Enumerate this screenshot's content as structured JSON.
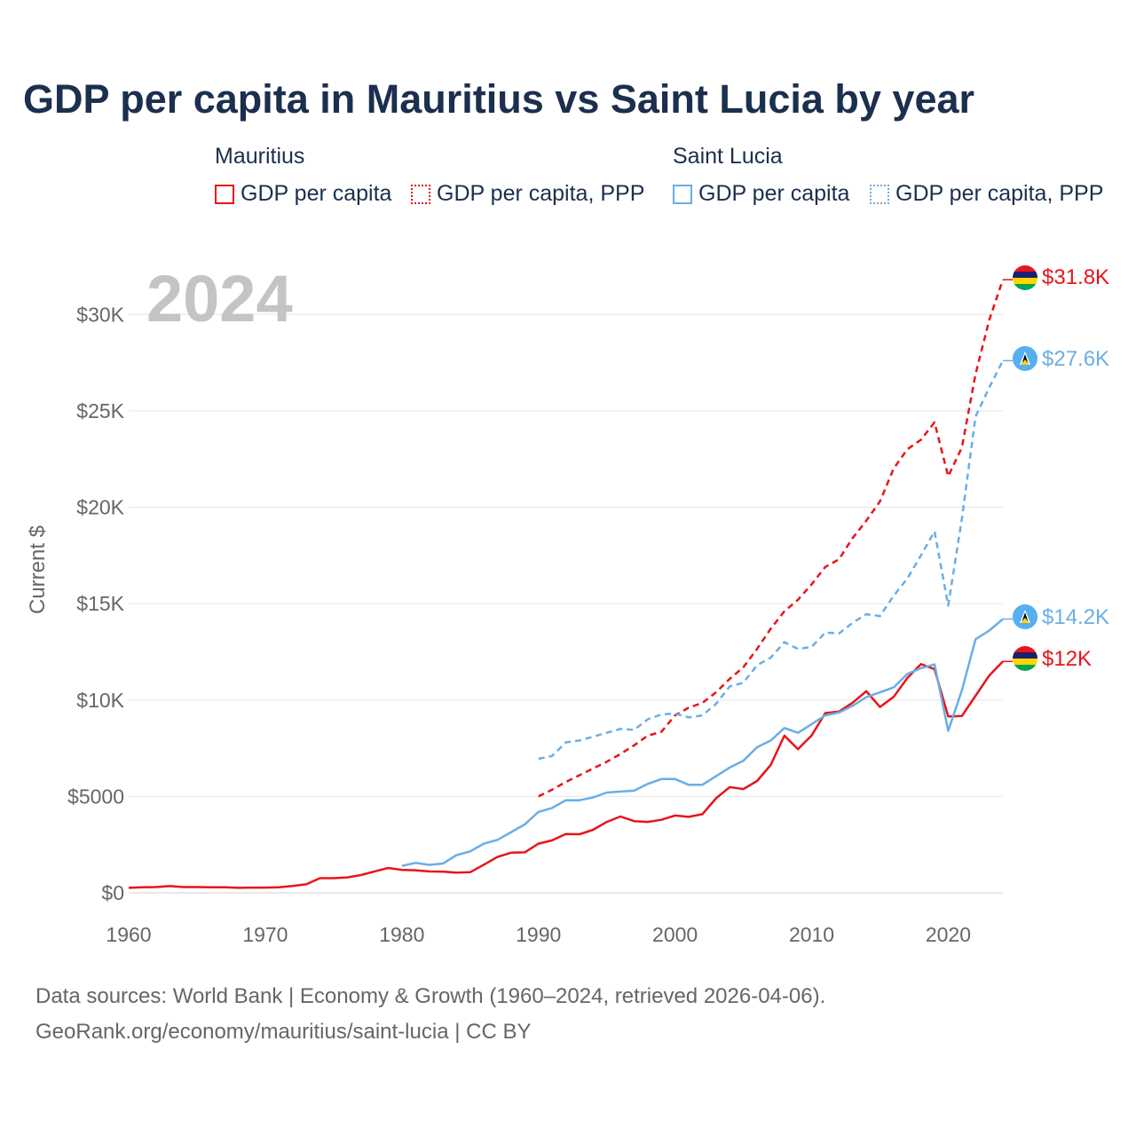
{
  "title": "GDP per capita in Mauritius vs Saint Lucia by year",
  "legend": {
    "groups": [
      {
        "country": "Mauritius",
        "items": [
          "GDP per capita",
          "GDP per capita, PPP"
        ]
      },
      {
        "country": "Saint Lucia",
        "items": [
          "GDP per capita",
          "GDP per capita, PPP"
        ]
      }
    ]
  },
  "footer": {
    "line1": "Data sources: World Bank | Economy & Growth (1960–2024, retrieved 2026-04-06).",
    "line2": "GeoRank.org/economy/mauritius/saint-lucia | CC BY"
  },
  "colors": {
    "mauritius": "#e8141a",
    "saint_lucia": "#6aaee5",
    "grid": "#e6e6e6",
    "axis_text": "#666666",
    "watermark": "#c4c4c4"
  },
  "chart_data": {
    "type": "line",
    "title": "GDP per capita in Mauritius vs Saint Lucia by year",
    "xlabel": "",
    "ylabel": "Current $",
    "xlim": [
      1960,
      2024
    ],
    "ylim": [
      0,
      32000
    ],
    "x_ticks": [
      1960,
      1970,
      1980,
      1990,
      2000,
      2010,
      2020
    ],
    "x_tick_labels": [
      "1960",
      "1970",
      "1980",
      "1990",
      "2000",
      "2010",
      "2020"
    ],
    "y_ticks": [
      0,
      5000,
      10000,
      15000,
      20000,
      25000,
      30000
    ],
    "y_tick_labels": [
      "$0",
      "$5000",
      "$10K",
      "$15K",
      "$20K",
      "$25K",
      "$30K"
    ],
    "year_label": "2024",
    "grid": true,
    "series": [
      {
        "name": "Mauritius GDP per capita",
        "country": "Mauritius",
        "style": "solid",
        "end_label": "$12K",
        "start_year": 1960,
        "values": [
          260,
          290,
          300,
          350,
          300,
          300,
          290,
          290,
          260,
          270,
          270,
          290,
          360,
          440,
          760,
          760,
          800,
          920,
          1110,
          1290,
          1190,
          1170,
          1110,
          1100,
          1050,
          1070,
          1460,
          1860,
          2080,
          2100,
          2550,
          2720,
          3050,
          3040,
          3270,
          3680,
          3960,
          3720,
          3680,
          3790,
          4010,
          3940,
          4080,
          4900,
          5480,
          5380,
          5800,
          6630,
          8150,
          7450,
          8160,
          9320,
          9400,
          9860,
          10460,
          9640,
          10160,
          11140,
          11860,
          11600,
          9150,
          9170,
          10220,
          11270,
          12000
        ]
      },
      {
        "name": "Mauritius GDP per capita, PPP",
        "country": "Mauritius",
        "style": "dashed",
        "end_label": "$31.8K",
        "start_year": 1990,
        "values": [
          5000,
          5350,
          5750,
          6100,
          6450,
          6800,
          7200,
          7650,
          8150,
          8350,
          9200,
          9600,
          9850,
          10400,
          11100,
          11700,
          12650,
          13700,
          14600,
          15200,
          16000,
          16900,
          17300,
          18400,
          19300,
          20300,
          22000,
          23000,
          23500,
          24400,
          21600,
          23100,
          26900,
          29700,
          31800
        ]
      },
      {
        "name": "Saint Lucia GDP per capita",
        "country": "Saint Lucia",
        "style": "solid",
        "end_label": "$14.2K",
        "start_year": 1980,
        "values": [
          1400,
          1550,
          1450,
          1520,
          1950,
          2150,
          2550,
          2750,
          3150,
          3550,
          4200,
          4400,
          4800,
          4800,
          4950,
          5200,
          5250,
          5300,
          5650,
          5900,
          5900,
          5600,
          5600,
          6050,
          6500,
          6850,
          7550,
          7900,
          8550,
          8300,
          8750,
          9200,
          9350,
          9700,
          10150,
          10400,
          10650,
          11350,
          11650,
          11850,
          8400,
          10500,
          13150,
          13600,
          14200
        ]
      },
      {
        "name": "Saint Lucia GDP per capita, PPP",
        "country": "Saint Lucia",
        "style": "dashed",
        "end_label": "$27.6K",
        "start_year": 1990,
        "values": [
          6950,
          7100,
          7800,
          7900,
          8100,
          8300,
          8500,
          8450,
          9000,
          9250,
          9300,
          9100,
          9200,
          9800,
          10700,
          10900,
          11800,
          12200,
          13000,
          12650,
          12750,
          13500,
          13450,
          14000,
          14450,
          14350,
          15400,
          16300,
          17500,
          18750,
          14900,
          19400,
          24700,
          26200,
          27600
        ]
      }
    ]
  }
}
